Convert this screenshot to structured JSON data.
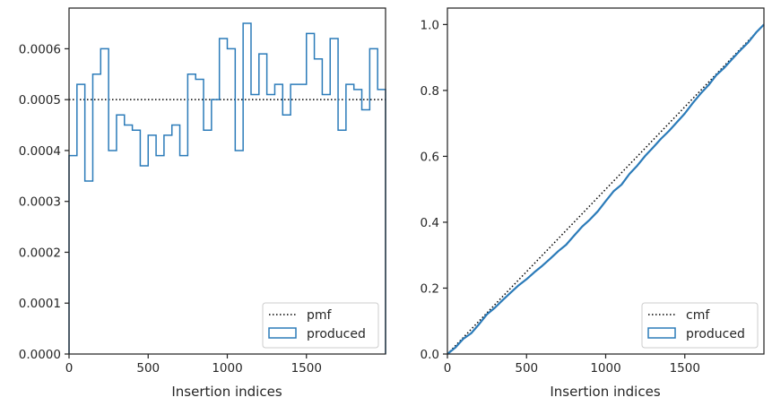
{
  "chart_data": [
    {
      "type": "histogram-step",
      "xlabel": "Insertion indices",
      "ylabel": "",
      "xlim": [
        0,
        2000
      ],
      "ylim": [
        0,
        0.00068
      ],
      "xticks": [
        0,
        500,
        1000,
        1500
      ],
      "xtick_labels": [
        "0",
        "500",
        "1000",
        "1500"
      ],
      "yticks": [
        0,
        0.0001,
        0.0002,
        0.0003,
        0.0004,
        0.0005,
        0.0006
      ],
      "ytick_labels": [
        "0.0000",
        "0.0001",
        "0.0002",
        "0.0003",
        "0.0004",
        "0.0005",
        "0.0006"
      ],
      "grid": false,
      "legend_position": "lower right",
      "bin_width": 50,
      "bin_values": [
        0.00039,
        0.00053,
        0.00034,
        0.00055,
        0.0006,
        0.0004,
        0.00047,
        0.00045,
        0.00044,
        0.00037,
        0.00043,
        0.00039,
        0.00043,
        0.00045,
        0.00039,
        0.00055,
        0.00054,
        0.00044,
        0.0005,
        0.00062,
        0.0006,
        0.0004,
        0.00065,
        0.00051,
        0.00059,
        0.00051,
        0.00053,
        0.00047,
        0.00053,
        0.00053,
        0.00063,
        0.00058,
        0.00051,
        0.00062,
        0.00044,
        0.00053,
        0.00052,
        0.00048,
        0.0006,
        0.00052
      ],
      "series": [
        {
          "name": "pmf",
          "style": "dotted",
          "color": "#000000",
          "value": 0.0005
        },
        {
          "name": "produced",
          "style": "step",
          "color": "#2b7bb9"
        }
      ]
    },
    {
      "type": "cumulative-step",
      "xlabel": "Insertion indices",
      "ylabel": "",
      "xlim": [
        0,
        2000
      ],
      "ylim": [
        0,
        1.05
      ],
      "xticks": [
        0,
        500,
        1000,
        1500
      ],
      "xtick_labels": [
        "0",
        "500",
        "1000",
        "1500"
      ],
      "yticks": [
        0,
        0.2,
        0.4,
        0.6,
        0.8,
        1.0
      ],
      "ytick_labels": [
        "0.0",
        "0.2",
        "0.4",
        "0.6",
        "0.8",
        "1.0"
      ],
      "grid": false,
      "legend_position": "lower right",
      "produced_x": [
        0,
        50,
        100,
        150,
        200,
        250,
        300,
        350,
        400,
        450,
        500,
        550,
        600,
        650,
        700,
        750,
        800,
        850,
        900,
        950,
        1000,
        1050,
        1100,
        1150,
        1200,
        1250,
        1300,
        1350,
        1400,
        1450,
        1500,
        1550,
        1600,
        1650,
        1700,
        1750,
        1800,
        1850,
        1900,
        1950,
        2000
      ],
      "produced_y": [
        0,
        0.0195,
        0.046,
        0.063,
        0.0905,
        0.1205,
        0.1405,
        0.164,
        0.1865,
        0.2085,
        0.227,
        0.2485,
        0.268,
        0.2895,
        0.312,
        0.3315,
        0.359,
        0.386,
        0.408,
        0.433,
        0.464,
        0.494,
        0.514,
        0.5465,
        0.572,
        0.6015,
        0.627,
        0.6535,
        0.677,
        0.7035,
        0.73,
        0.7615,
        0.7905,
        0.816,
        0.847,
        0.869,
        0.8955,
        0.9215,
        0.9455,
        0.9755,
        1.0
      ],
      "series": [
        {
          "name": "cmf",
          "style": "dotted",
          "color": "#000000"
        },
        {
          "name": "produced",
          "style": "step",
          "color": "#2b7bb9"
        }
      ]
    }
  ]
}
